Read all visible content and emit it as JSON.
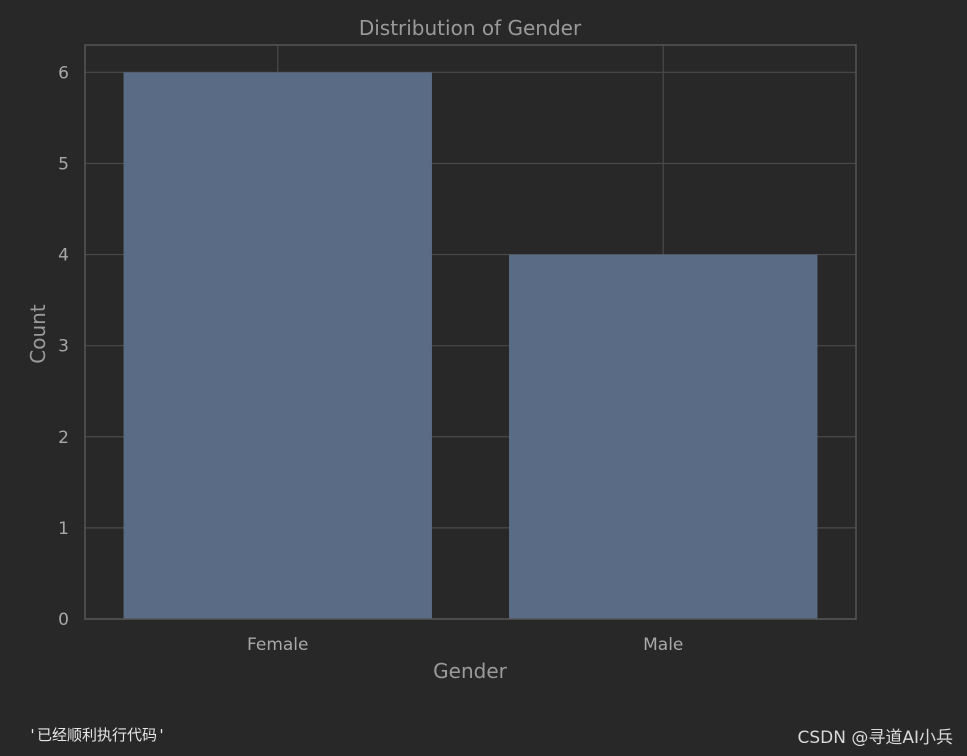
{
  "chart_data": {
    "type": "bar",
    "title": "Distribution of Gender",
    "xlabel": "Gender",
    "ylabel": "Count",
    "categories": [
      "Female",
      "Male"
    ],
    "values": [
      6,
      4
    ],
    "ylim": [
      0,
      6.3
    ],
    "yticks": [
      0,
      1,
      2,
      3,
      4,
      5,
      6
    ],
    "grid": true,
    "bar_color": "#5a6b86",
    "background": "#282828",
    "grid_color": "#4a4a4a"
  },
  "output_text": "'已经顺利执行代码'",
  "watermark": "CSDN @寻道AI小兵"
}
